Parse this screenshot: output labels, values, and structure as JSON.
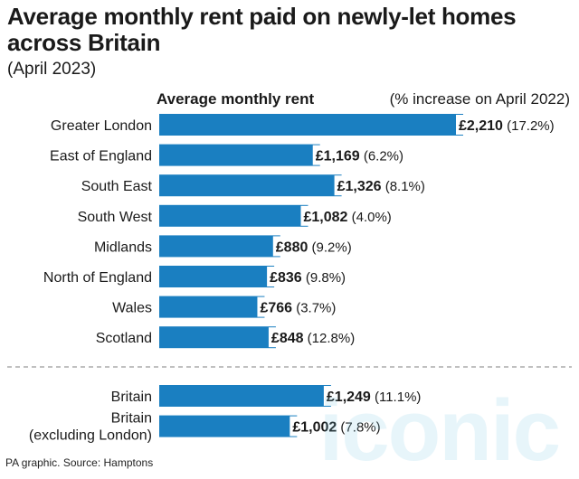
{
  "header": {
    "title": "Average monthly rent paid on newly-let homes across Britain",
    "subtitle": "(April 2023)"
  },
  "footer": {
    "source": "PA graphic. Source: Hamptons"
  },
  "watermark": {
    "text": "iconic"
  },
  "colors": {
    "bar": "#1a7fc1",
    "divider": "#9a9a9a"
  },
  "chart_data": {
    "type": "bar",
    "orientation": "horizontal",
    "column_headers": {
      "value": "Average monthly rent",
      "change": "(% increase on April 2022)"
    },
    "groups": [
      {
        "categories": [
          "Greater London",
          "East of England",
          "South East",
          "South West",
          "Midlands",
          "North of England",
          "Wales",
          "Scotland"
        ],
        "values": [
          2210,
          1169,
          1326,
          1082,
          880,
          836,
          766,
          848
        ],
        "value_labels": [
          "£2,210",
          "£1,169",
          "£1,326",
          "£1,082",
          "£880",
          "£836",
          "£766",
          "£848"
        ],
        "change_labels": [
          "(17.2%)",
          "(6.2%)",
          "(8.1%)",
          "(4.0%)",
          "(9.2%)",
          "(9.8%)",
          "(3.7%)",
          "(12.8%)"
        ]
      },
      {
        "categories": [
          "Britain",
          "Britain\n(excluding London)"
        ],
        "values": [
          1249,
          1002
        ],
        "value_labels": [
          "£1,249",
          "£1,002"
        ],
        "change_labels": [
          "(11.1%)",
          "(7.8%)"
        ]
      }
    ],
    "xlim": [
      0,
      2210
    ]
  }
}
